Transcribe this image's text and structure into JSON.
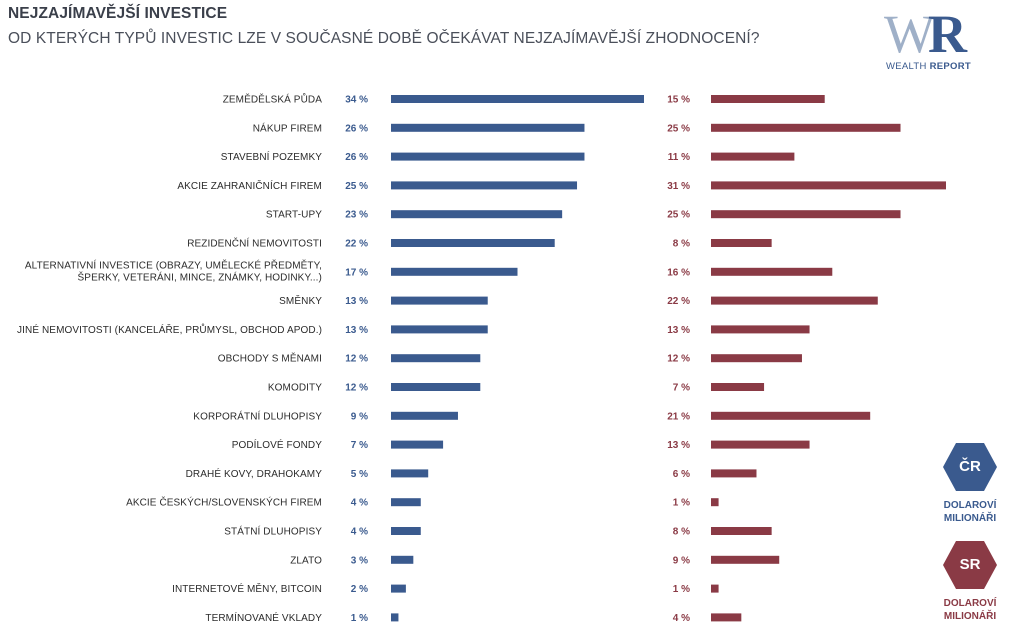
{
  "header": {
    "title": "NEJZAJÍMAVĚJŠÍ INVESTICE",
    "subtitle": "OD KTERÝCH TYPŮ INVESTIC LZE V SOUČASNÉ DOBĚ OČEKÁVAT NEJZAJÍMAVĚJŠÍ ZHODNOCENÍ?"
  },
  "logo": {
    "mark": "WR",
    "text_light": "WEALTH ",
    "text_bold": "REPORT"
  },
  "legend": {
    "cr": {
      "badge": "ČR",
      "caption_line1": "DOLAROVÍ",
      "caption_line2": "MILIONÁŘI",
      "color": "#3a5a8e"
    },
    "sr": {
      "badge": "SR",
      "caption_line1": "DOLAROVÍ",
      "caption_line2": "MILIONÁŘI",
      "color": "#8a3a45"
    }
  },
  "chart_data": {
    "type": "bar",
    "orientation": "horizontal",
    "categories": [
      [
        "ZEMĚDĚLSKÁ PŮDA"
      ],
      [
        "NÁKUP FIREM"
      ],
      [
        "STAVEBNÍ POZEMKY"
      ],
      [
        "AKCIE ZAHRANIČNÍCH FIREM"
      ],
      [
        "START-UPY"
      ],
      [
        "REZIDENČNÍ NEMOVITOSTI"
      ],
      [
        "ALTERNATIVNÍ INVESTICE (OBRAZY, UMĚLECKÉ PŘEDMĚTY,",
        "ŠPERKY, VETERÁNI, MINCE, ZNÁMKY, HODINKY...)"
      ],
      [
        "SMĚNKY"
      ],
      [
        "JINÉ NEMOVITOSTI (KANCELÁŘE, PRŮMYSL, OBCHOD APOD.)"
      ],
      [
        "OBCHODY S MĚNAMI"
      ],
      [
        "KOMODITY"
      ],
      [
        "KORPORÁTNÍ DLUHOPISY"
      ],
      [
        "PODÍLOVÉ FONDY"
      ],
      [
        "DRAHÉ KOVY, DRAHOKAMY"
      ],
      [
        "AKCIE ČESKÝCH/SLOVENSKÝCH FIREM"
      ],
      [
        "STÁTNÍ DLUHOPISY"
      ],
      [
        "ZLATO"
      ],
      [
        "INTERNETOVÉ MĚNY, BITCOIN"
      ],
      [
        "TERMÍNOVANÉ VKLADY"
      ]
    ],
    "series": [
      {
        "name": "ČR",
        "color": "#3a5a8e",
        "values": [
          34,
          26,
          26,
          25,
          23,
          22,
          17,
          13,
          13,
          12,
          12,
          9,
          7,
          5,
          4,
          4,
          3,
          2,
          1
        ],
        "labels": [
          "34 %",
          "26 %",
          "26 %",
          "25 %",
          "23 %",
          "22 %",
          "17 %",
          "13 %",
          "13 %",
          "12 %",
          "12 %",
          "9 %",
          "7 %",
          "5 %",
          "4 %",
          "4 %",
          "3 %",
          "2 %",
          "1 %"
        ]
      },
      {
        "name": "SR",
        "color": "#8a3a45",
        "values": [
          15,
          25,
          11,
          31,
          25,
          8,
          16,
          22,
          13,
          12,
          7,
          21,
          13,
          6,
          1,
          8,
          9,
          1,
          4
        ],
        "labels": [
          "15 %",
          "25 %",
          "11 %",
          "31 %",
          "25 %",
          "8  %",
          "16 %",
          "22 %",
          "13 %",
          "12 %",
          "7 %",
          "21 %",
          "13 %",
          "6 %",
          "1 %",
          "8 %",
          "9 %",
          "1 %",
          "4 %"
        ]
      }
    ],
    "unit": "%"
  }
}
